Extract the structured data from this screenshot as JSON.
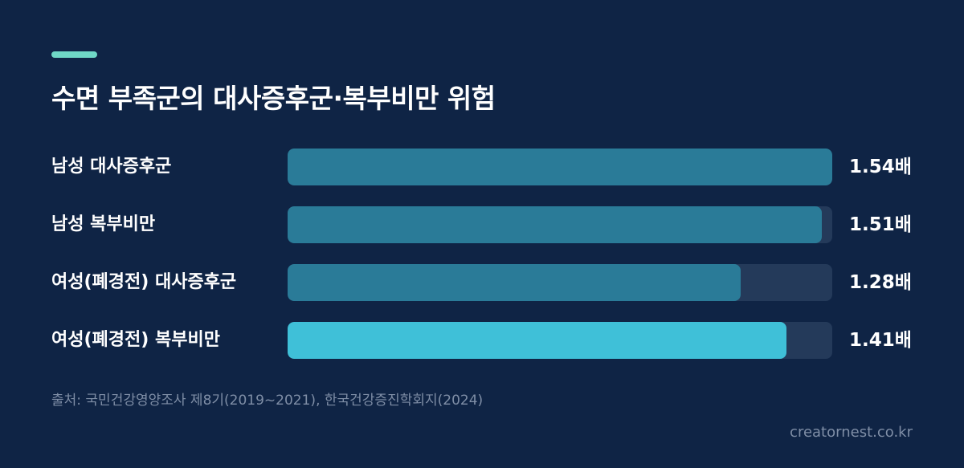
{
  "header": {
    "title": "수면 부족군의 대사증후군·복부비만 위험"
  },
  "chart_data": {
    "type": "bar",
    "orientation": "horizontal",
    "title": "수면 부족군의 대사증후군·복부비만 위험",
    "categories": [
      "남성 대사증후군",
      "남성 복부비만",
      "여성(폐경전) 대사증후군",
      "여성(폐경전) 복부비만"
    ],
    "values": [
      1.54,
      1.51,
      1.28,
      1.41
    ],
    "value_labels": [
      "1.54배",
      "1.51배",
      "1.28배",
      "1.41배"
    ],
    "xlim": [
      0,
      1.54
    ],
    "highlight_index": 3,
    "colors": {
      "bar": "#2a7b98",
      "highlight": "#3fc0d8",
      "track": "#243a5a"
    },
    "grid": false
  },
  "footer": {
    "source": "출처: 국민건강영양조사 제8기(2019~2021), 한국건강증진학회지(2024)",
    "watermark": "creatornest.co.kr"
  },
  "colors": {
    "background": "#0f2445",
    "accent": "#6fd8c6"
  }
}
